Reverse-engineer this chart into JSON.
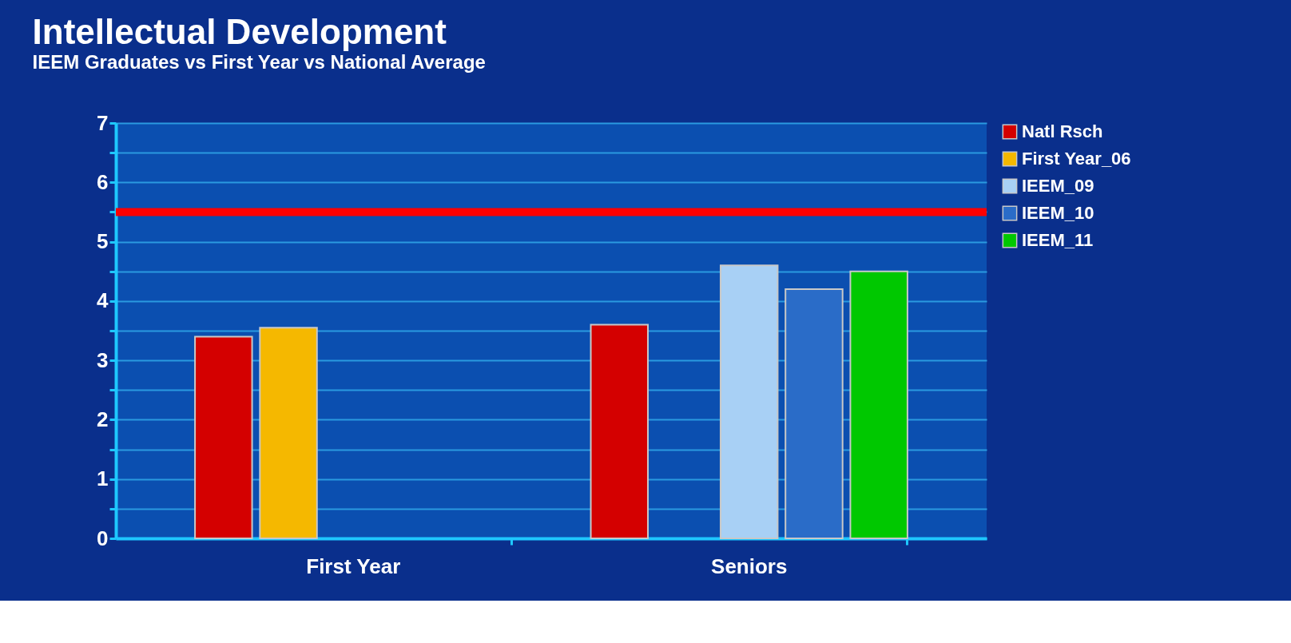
{
  "chart_data": {
    "type": "bar",
    "title": "Intellectual Development",
    "subtitle": "IEEM Graduates vs First Year vs National Average",
    "categories": [
      "First Year",
      "Seniors"
    ],
    "series": [
      {
        "name": "Natl Rsch",
        "color": "#d40000",
        "values": [
          3.4,
          3.6
        ]
      },
      {
        "name": "First Year_06",
        "color": "#f5b800",
        "values": [
          3.55,
          null
        ]
      },
      {
        "name": "IEEM_09",
        "color": "#a8d0f5",
        "values": [
          null,
          4.6
        ]
      },
      {
        "name": "IEEM_10",
        "color": "#2a6cc8",
        "values": [
          null,
          4.2
        ]
      },
      {
        "name": "IEEM_11",
        "color": "#00c800",
        "values": [
          null,
          4.5
        ]
      }
    ],
    "ylim": [
      0,
      7
    ],
    "yticks": [
      0,
      {
        "value": 0.5,
        "label": null
      },
      1,
      {
        "value": 1.5,
        "label": null
      },
      2,
      {
        "value": 2.5,
        "label": null
      },
      3,
      {
        "value": 3.5,
        "label": null
      },
      4,
      {
        "value": 4.5,
        "label": null
      },
      5,
      {
        "value": 5.5,
        "label": null
      },
      6,
      {
        "value": 6.5,
        "label": null
      },
      7
    ],
    "ref_lines": [
      {
        "axis": "y",
        "value": 5.5,
        "color": "#ff0000"
      }
    ],
    "grid": true,
    "legend": "right"
  }
}
